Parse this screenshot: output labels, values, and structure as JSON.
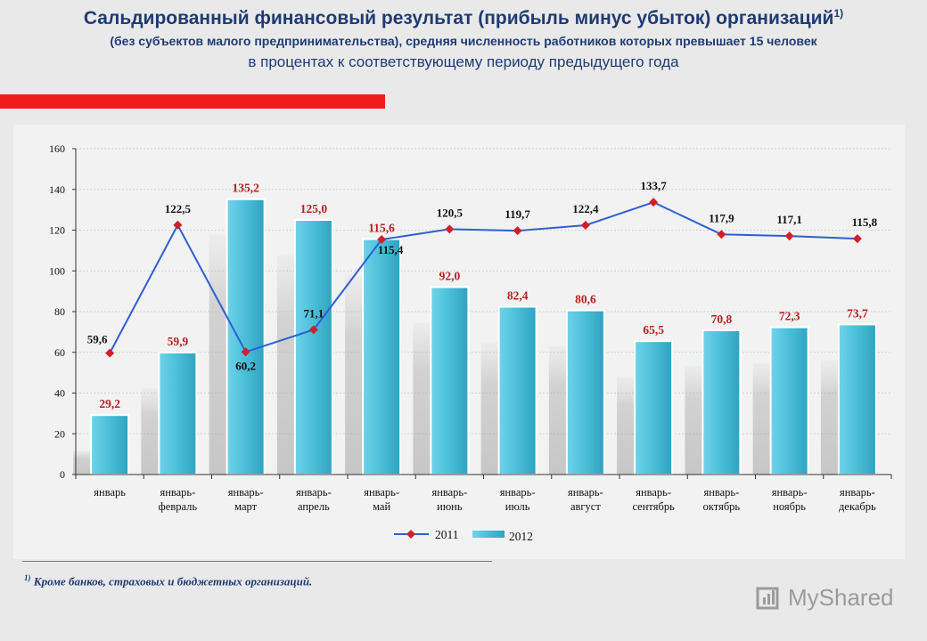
{
  "header": {
    "title": "Сальдированный финансовый результат (прибыль минус убыток) организаций",
    "title_note": "1)",
    "subtitle": "(без субъектов малого предпринимательства), средняя численность работников которых превышает 15 человек",
    "subtitle2": "в процентах к соответствующему периоду предыдущего года"
  },
  "footnote": {
    "mark": "1)",
    "text": "Кроме банков, страховых и бюджетных организаций."
  },
  "watermark": {
    "text": "MyShared",
    "icon": "myshared-logo-icon"
  },
  "colors": {
    "bar": "#4ec0d9",
    "line": "#2e5fd0",
    "marker": "#d0202a",
    "bar_label": "#b81f1f",
    "line_label": "#111111"
  },
  "chart_data": {
    "type": "bar",
    "categories": [
      [
        "январь"
      ],
      [
        "январь-",
        "февраль"
      ],
      [
        "январь-",
        "март"
      ],
      [
        "январь-",
        "апрель"
      ],
      [
        "январь-",
        "май"
      ],
      [
        "январь-",
        "июнь"
      ],
      [
        "январь-",
        "июль"
      ],
      [
        "январь-",
        "август"
      ],
      [
        "январь-",
        "сентябрь"
      ],
      [
        "январь-",
        "октябрь"
      ],
      [
        "январь-",
        "ноябрь"
      ],
      [
        "январь-",
        "декабрь"
      ]
    ],
    "series": [
      {
        "name": "2012",
        "kind": "bar",
        "values": [
          29.2,
          59.9,
          135.2,
          125.0,
          115.6,
          92.0,
          82.4,
          80.6,
          65.5,
          70.8,
          72.3,
          73.7
        ],
        "labels": [
          "29,2",
          "59,9",
          "135,2",
          "125,0",
          "115,6",
          "92,0",
          "82,4",
          "80,6",
          "65,5",
          "70,8",
          "72,3",
          "73,7"
        ]
      },
      {
        "name": "2011",
        "kind": "line",
        "values": [
          59.6,
          122.5,
          60.2,
          71.1,
          115.4,
          120.5,
          119.7,
          122.4,
          133.7,
          117.9,
          117.1,
          115.8
        ],
        "labels": [
          "59,6",
          "122,5",
          "60,2",
          "71,1",
          "115,4",
          "120,5",
          "119,7",
          "122,4",
          "133,7",
          "117,9",
          "117,1",
          "115,8"
        ]
      }
    ],
    "ylim": [
      0,
      160
    ],
    "yticks": [
      0,
      20,
      40,
      60,
      80,
      100,
      120,
      140,
      160
    ],
    "grid": true,
    "legend": "bottom"
  }
}
